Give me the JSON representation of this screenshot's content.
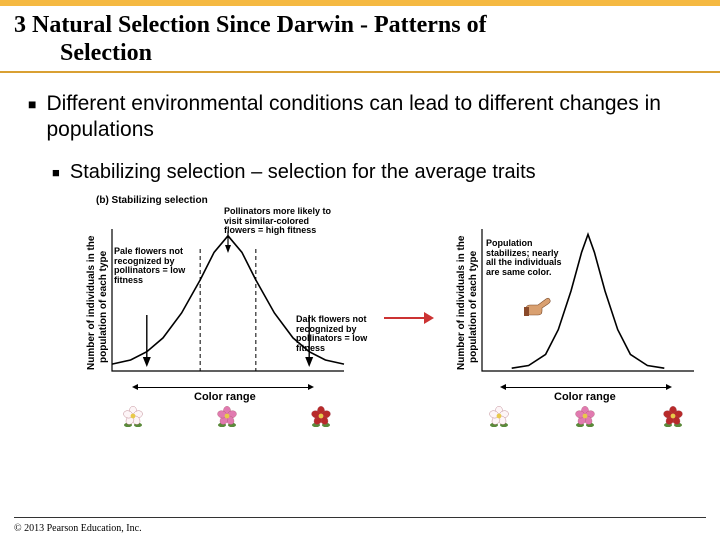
{
  "accent_color": "#f5b942",
  "title_line1": "3 Natural Selection Since Darwin - Patterns of",
  "title_line2": "Selection",
  "bullet1": "Different environmental conditions can lead to different changes in populations",
  "bullet2": "Stabilizing selection – selection for the average traits",
  "figure": {
    "subcaption": "(b) Stabilizing selection",
    "ylabel": "Number of individuals in the population of each type",
    "xlabel": "Color range",
    "left_chart": {
      "annot_pale": "Pale flowers not recognized by pollinators = low fitness",
      "annot_mid": "Pollinators more likely to visit similar-colored flowers = high fitness",
      "annot_dark": "Dark flowers not recognized by pollinators = low fitness",
      "curve_color": "#000000",
      "curve": [
        {
          "x": 0,
          "y": 0.05
        },
        {
          "x": 0.08,
          "y": 0.08
        },
        {
          "x": 0.15,
          "y": 0.14
        },
        {
          "x": 0.22,
          "y": 0.24
        },
        {
          "x": 0.3,
          "y": 0.42
        },
        {
          "x": 0.38,
          "y": 0.66
        },
        {
          "x": 0.44,
          "y": 0.86
        },
        {
          "x": 0.5,
          "y": 0.98
        },
        {
          "x": 0.56,
          "y": 0.86
        },
        {
          "x": 0.62,
          "y": 0.66
        },
        {
          "x": 0.7,
          "y": 0.42
        },
        {
          "x": 0.78,
          "y": 0.24
        },
        {
          "x": 0.85,
          "y": 0.14
        },
        {
          "x": 0.92,
          "y": 0.08
        },
        {
          "x": 1.0,
          "y": 0.05
        }
      ],
      "dash_x": [
        0.38,
        0.62
      ],
      "arrow_down_x": [
        0.15,
        0.85
      ]
    },
    "right_chart": {
      "annot_stable": "Population stabilizes; nearly all the individuals are same color.",
      "curve_color": "#000000",
      "curve": [
        {
          "x": 0.14,
          "y": 0.02
        },
        {
          "x": 0.22,
          "y": 0.04
        },
        {
          "x": 0.3,
          "y": 0.12
        },
        {
          "x": 0.36,
          "y": 0.3
        },
        {
          "x": 0.42,
          "y": 0.58
        },
        {
          "x": 0.47,
          "y": 0.86
        },
        {
          "x": 0.5,
          "y": 0.99
        },
        {
          "x": 0.53,
          "y": 0.86
        },
        {
          "x": 0.58,
          "y": 0.58
        },
        {
          "x": 0.64,
          "y": 0.3
        },
        {
          "x": 0.7,
          "y": 0.12
        },
        {
          "x": 0.78,
          "y": 0.04
        },
        {
          "x": 0.86,
          "y": 0.02
        }
      ]
    },
    "flower_colors": {
      "pale": "#fdf5f7",
      "pink": "#e17ab0",
      "red": "#b82a2a",
      "center": "#e8c94a",
      "leaf": "#5a8a3a"
    }
  },
  "copyright": "© 2013 Pearson Education, Inc."
}
